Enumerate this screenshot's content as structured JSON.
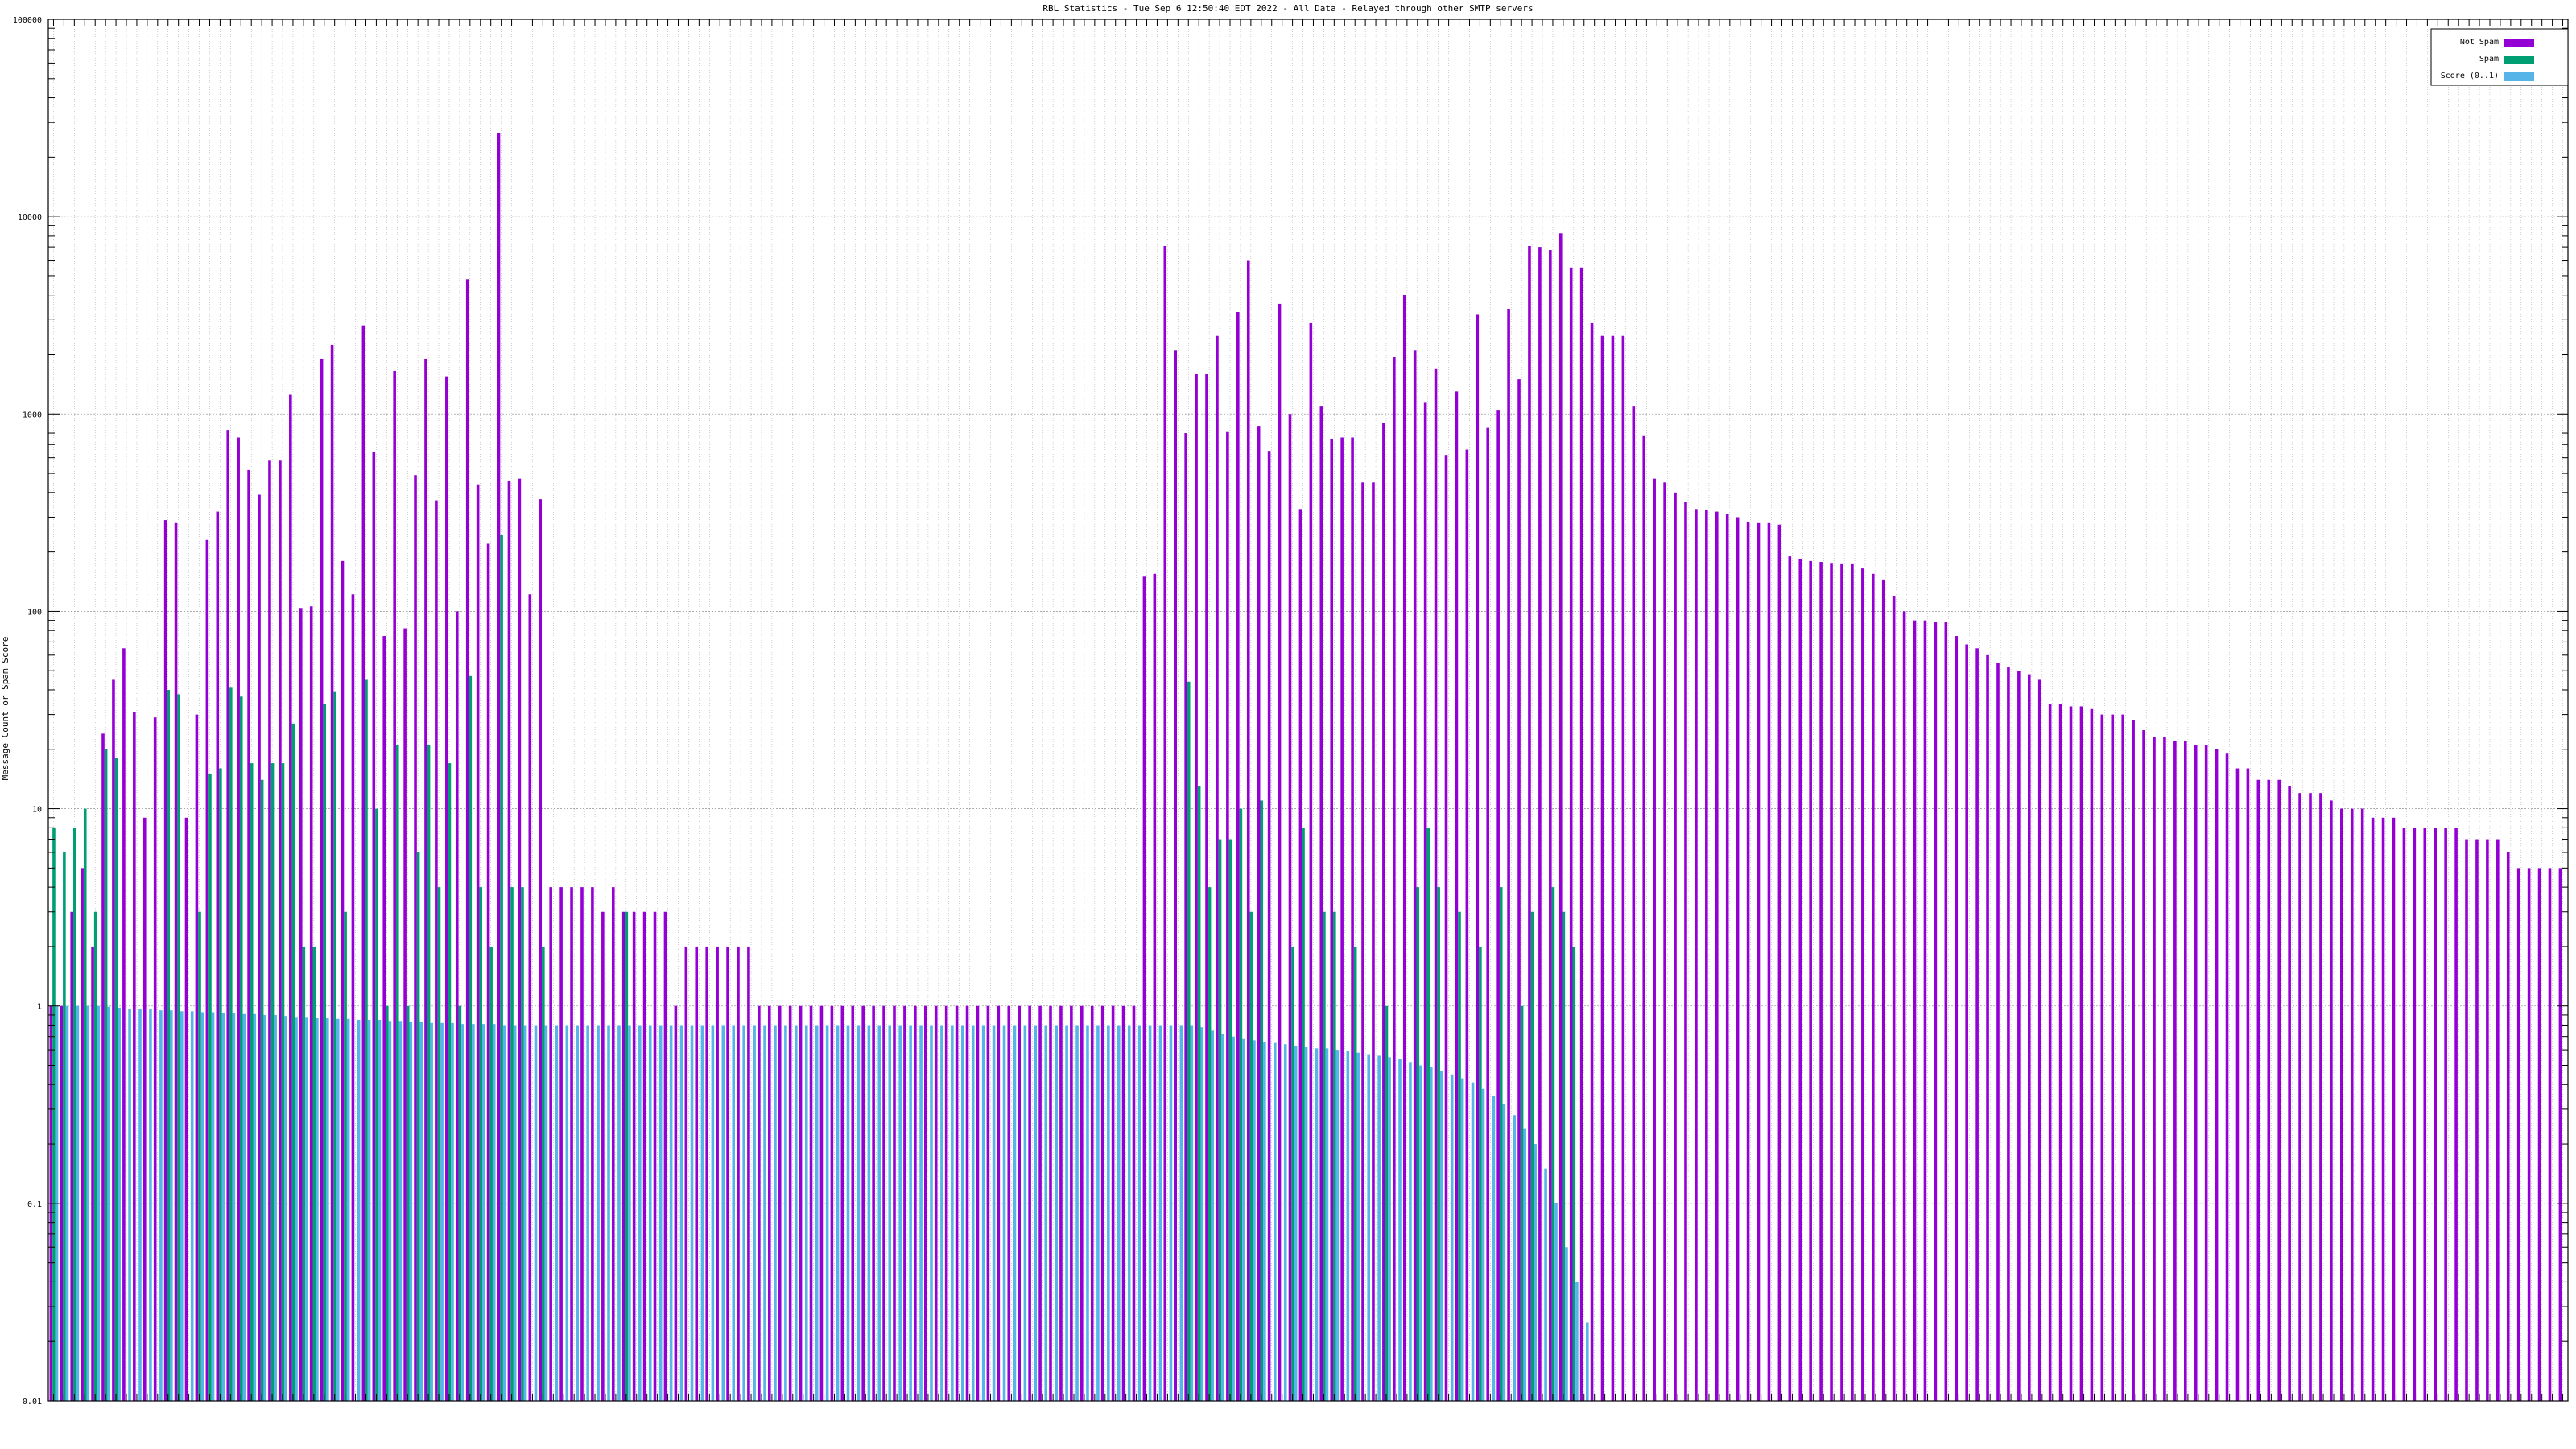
{
  "chart_data": {
    "type": "bar",
    "title": "RBL Statistics - Tue Sep  6 12:50:40 EDT 2022 - All Data - Relayed through other SMTP servers",
    "ylabel": "Message Count or Spam Score",
    "yscale": "log",
    "ylim": [
      0.01,
      100000
    ],
    "y_ticks": [
      0.01,
      0.1,
      1,
      10,
      100,
      1000,
      10000,
      100000
    ],
    "y_tick_labels": [
      "0.01",
      "0.1",
      "1",
      "10",
      "100",
      "1000",
      "10000",
      "100000"
    ],
    "grid": true,
    "legend_position": "top-right",
    "colors": {
      "not_spam": "#9400d3",
      "spam": "#009e73",
      "score": "#56b4e9",
      "grid": "#a0a0a0",
      "axis": "#000000"
    },
    "series": [
      {
        "name": "Not Spam",
        "values": [
          1,
          1,
          3,
          5,
          2,
          24,
          45,
          65,
          31,
          9,
          29,
          290,
          280,
          9,
          30,
          230,
          320,
          830,
          760,
          520,
          390,
          580,
          580,
          1250,
          104,
          106,
          1900,
          2250,
          180,
          122,
          2800,
          640,
          75,
          1650,
          82,
          490,
          1900,
          365,
          1550,
          100,
          4800,
          440,
          220,
          26600,
          460,
          470,
          122,
          370,
          4,
          4,
          4,
          4,
          4,
          3,
          4,
          3,
          3,
          3,
          3,
          3,
          1,
          2,
          2,
          2,
          2,
          2,
          2,
          2,
          1,
          1,
          1,
          1,
          1,
          1,
          1,
          1,
          1,
          1,
          1,
          1,
          1,
          1,
          1,
          1,
          1,
          1,
          1,
          1,
          1,
          1,
          1,
          1,
          1,
          1,
          1,
          1,
          1,
          1,
          1,
          1,
          1,
          1,
          1,
          1,
          1,
          150,
          155,
          7100,
          2100,
          800,
          1600,
          1600,
          2500,
          810,
          3300,
          6000,
          870,
          650,
          3600,
          1000,
          330,
          2900,
          1100,
          750,
          760,
          760,
          450,
          450,
          900,
          1950,
          4000,
          2100,
          1150,
          1700,
          620,
          1300,
          660,
          3200,
          850,
          1050,
          3400,
          1500,
          7100,
          7000,
          6800,
          8200,
          5500,
          5500,
          2900,
          2500,
          2500,
          2500,
          1100,
          780,
          470,
          450,
          400,
          360,
          330,
          325,
          320,
          310,
          300,
          285,
          280,
          280,
          275,
          190,
          185,
          180,
          178,
          176,
          175,
          175,
          165,
          155,
          145,
          120,
          100,
          90,
          90,
          88,
          88,
          75,
          68,
          65,
          60,
          55,
          52,
          50,
          48,
          45,
          34,
          34,
          33,
          33,
          32,
          30,
          30,
          30,
          28,
          25,
          23,
          23,
          22,
          22,
          21,
          21,
          20,
          19,
          16,
          16,
          14,
          14,
          14,
          13,
          12,
          12,
          12,
          11,
          10,
          10,
          10,
          9,
          9,
          9,
          8,
          8,
          8,
          8,
          8,
          8,
          7,
          7,
          7,
          7,
          6,
          5,
          5,
          5,
          5,
          5
        ]
      },
      {
        "name": "Spam",
        "values": [
          8,
          6,
          8,
          10,
          3,
          20,
          18,
          null,
          null,
          null,
          null,
          40,
          38,
          null,
          3,
          15,
          16,
          41,
          37,
          17,
          14,
          17,
          17,
          27,
          2,
          2,
          34,
          39,
          3,
          null,
          45,
          10,
          1,
          21,
          1,
          6,
          21,
          4,
          17,
          1,
          47,
          4,
          2,
          245,
          4,
          4,
          null,
          2,
          null,
          null,
          null,
          null,
          null,
          null,
          null,
          3,
          null,
          null,
          null,
          null,
          null,
          null,
          null,
          null,
          null,
          null,
          null,
          null,
          null,
          null,
          null,
          null,
          null,
          null,
          null,
          null,
          null,
          null,
          null,
          null,
          null,
          null,
          null,
          null,
          null,
          null,
          null,
          null,
          null,
          null,
          null,
          null,
          null,
          null,
          null,
          null,
          null,
          null,
          null,
          null,
          null,
          null,
          null,
          null,
          null,
          null,
          null,
          null,
          null,
          44,
          13,
          4,
          7,
          7,
          10,
          3,
          11,
          null,
          null,
          2,
          8,
          null,
          3,
          3,
          null,
          2,
          null,
          null,
          1,
          null,
          null,
          4,
          8,
          4,
          null,
          3,
          null,
          2,
          null,
          4,
          null,
          1,
          3,
          null,
          4,
          3,
          2
        ]
      },
      {
        "name": "Score (0..1)",
        "values": [
          1,
          1,
          1,
          1,
          1,
          0.99,
          0.98,
          0.97,
          0.96,
          0.96,
          0.95,
          0.95,
          0.94,
          0.94,
          0.93,
          0.93,
          0.92,
          0.92,
          0.91,
          0.91,
          0.9,
          0.9,
          0.89,
          0.88,
          0.88,
          0.87,
          0.87,
          0.86,
          0.86,
          0.85,
          0.85,
          0.85,
          0.84,
          0.84,
          0.83,
          0.83,
          0.82,
          0.82,
          0.82,
          0.81,
          0.81,
          0.81,
          0.81,
          0.8,
          0.8,
          0.8,
          0.8,
          0.8,
          0.8,
          0.8,
          0.8,
          0.8,
          0.8,
          0.8,
          0.8,
          0.8,
          0.8,
          0.8,
          0.8,
          0.8,
          0.8,
          0.8,
          0.8,
          0.8,
          0.8,
          0.8,
          0.8,
          0.8,
          0.8,
          0.8,
          0.8,
          0.8,
          0.8,
          0.8,
          0.8,
          0.8,
          0.8,
          0.8,
          0.8,
          0.8,
          0.8,
          0.8,
          0.8,
          0.8,
          0.8,
          0.8,
          0.8,
          0.8,
          0.8,
          0.8,
          0.8,
          0.8,
          0.8,
          0.8,
          0.8,
          0.8,
          0.8,
          0.8,
          0.8,
          0.8,
          0.8,
          0.8,
          0.8,
          0.8,
          0.8,
          0.8,
          0.8,
          0.8,
          0.8,
          0.8,
          0.78,
          0.75,
          0.72,
          0.7,
          0.68,
          0.67,
          0.66,
          0.65,
          0.64,
          0.63,
          0.62,
          0.61,
          0.61,
          0.6,
          0.59,
          0.58,
          0.57,
          0.56,
          0.55,
          0.54,
          0.52,
          0.5,
          0.49,
          0.47,
          0.45,
          0.43,
          0.41,
          0.38,
          0.35,
          0.32,
          0.28,
          0.24,
          0.2,
          0.15,
          0.1,
          0.06,
          0.04,
          0.025
        ]
      }
    ]
  }
}
